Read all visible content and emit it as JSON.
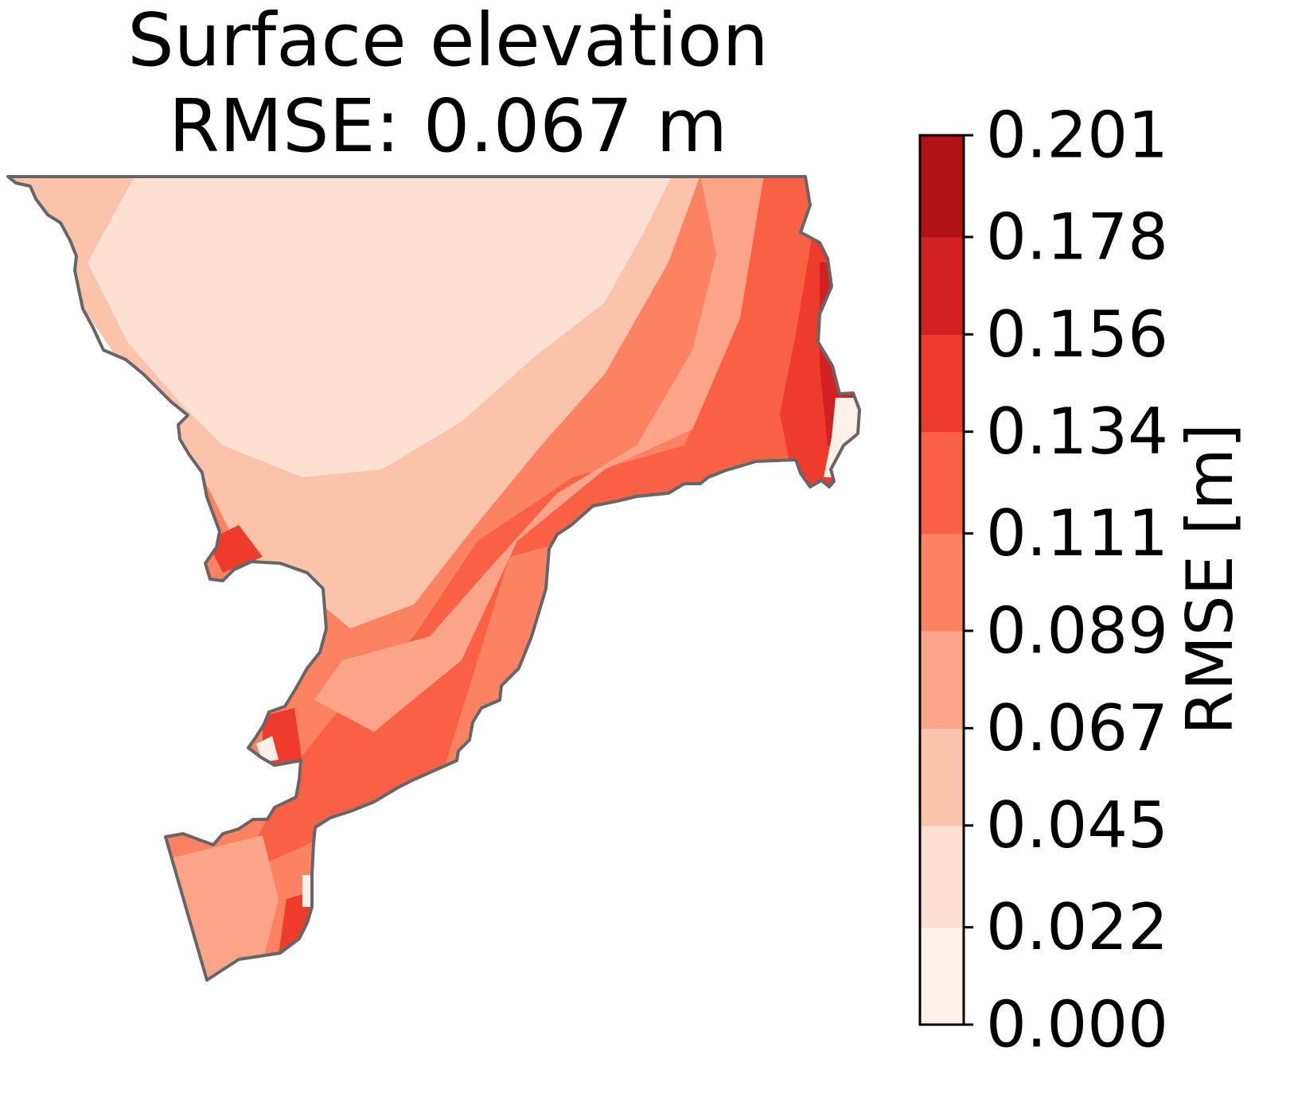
{
  "chart_data": {
    "type": "heatmap",
    "subtype": "filled-contour map",
    "title_lines": [
      "Surface elevation",
      "RMSE: 0.067 m"
    ],
    "colorbar": {
      "label": "RMSE [m]",
      "min": 0.0,
      "max": 0.201,
      "levels": [
        0.0,
        0.022,
        0.045,
        0.067,
        0.089,
        0.111,
        0.134,
        0.156,
        0.178,
        0.201
      ],
      "tick_labels": [
        "0.000",
        "0.022",
        "0.045",
        "0.067",
        "0.089",
        "0.111",
        "0.134",
        "0.156",
        "0.178",
        "0.201"
      ],
      "colors": [
        "#fff0e8",
        "#fee0d2",
        "#fcc3ab",
        "#fca487",
        "#fc8262",
        "#f96044",
        "#ee3b2c",
        "#d32020",
        "#b11218",
        "#860811"
      ],
      "outline_color": "#000000"
    },
    "coastline_color": "#666666",
    "axes": "off",
    "grid": false
  }
}
